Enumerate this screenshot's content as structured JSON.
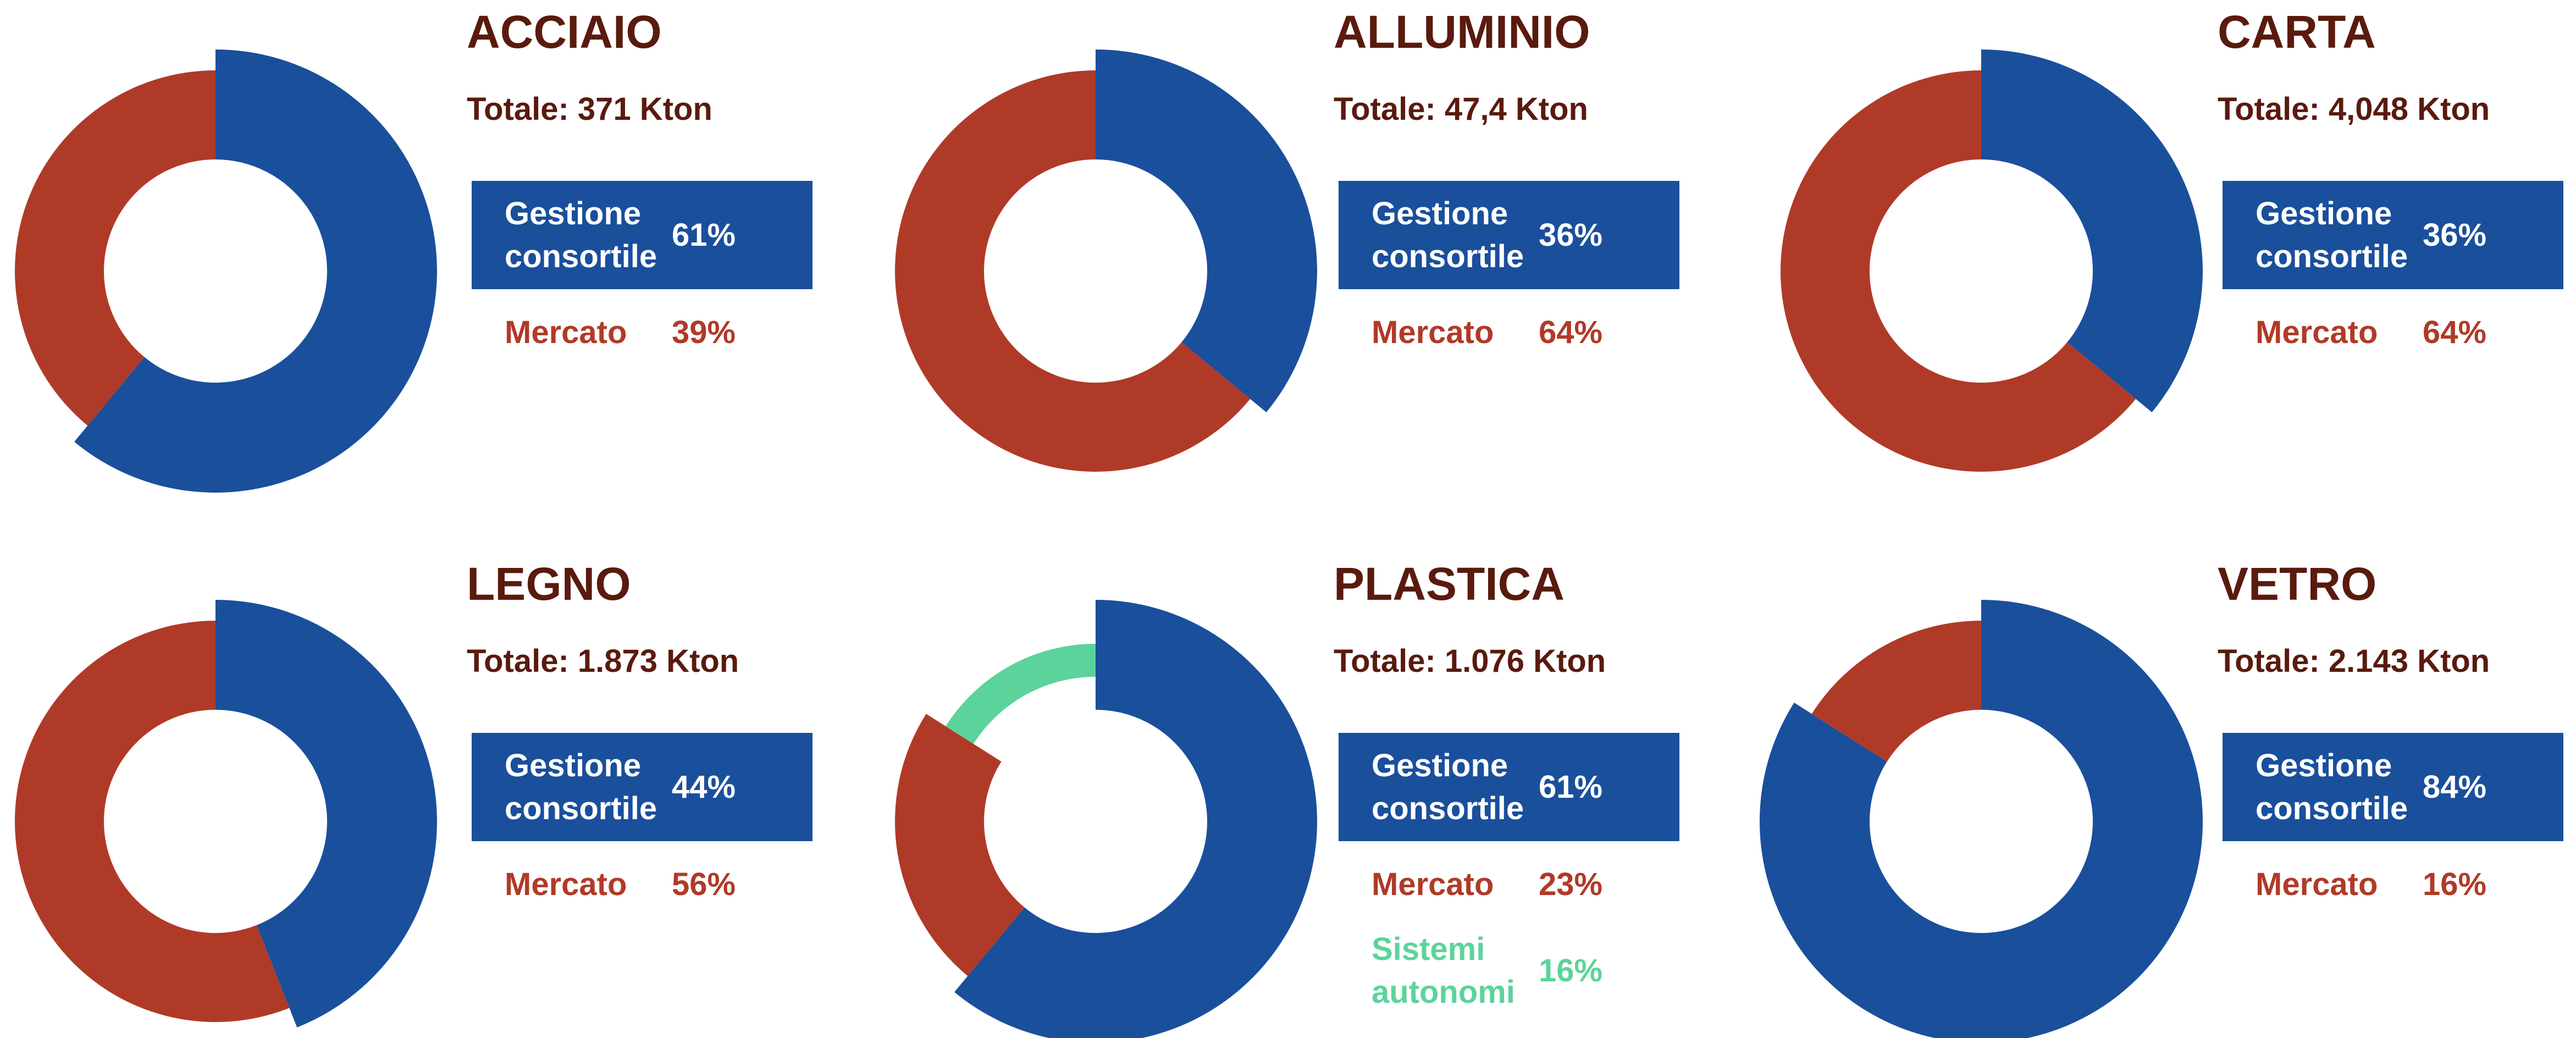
{
  "chart_data": [
    {
      "type": "pie",
      "title": "ACCIAIO",
      "subtitle": "Totale: 371 Kton",
      "categories": [
        "Gestione consortile",
        "Mercato"
      ],
      "values": [
        61,
        39
      ],
      "value_labels": [
        "61%",
        "39%"
      ],
      "colors": [
        "#1a4f9c",
        "#b03a28"
      ]
    },
    {
      "type": "pie",
      "title": "ALLUMINIO",
      "subtitle": "Totale: 47,4 Kton",
      "categories": [
        "Gestione consortile",
        "Mercato"
      ],
      "values": [
        36,
        64
      ],
      "value_labels": [
        "36%",
        "64%"
      ],
      "colors": [
        "#1a4f9c",
        "#b03a28"
      ]
    },
    {
      "type": "pie",
      "title": "CARTA",
      "subtitle": "Totale: 4,048 Kton",
      "categories": [
        "Gestione consortile",
        "Mercato"
      ],
      "values": [
        36,
        64
      ],
      "value_labels": [
        "36%",
        "64%"
      ],
      "colors": [
        "#1a4f9c",
        "#b03a28"
      ]
    },
    {
      "type": "pie",
      "title": "LEGNO",
      "subtitle": "Totale: 1.873 Kton",
      "categories": [
        "Gestione consortile",
        "Mercato"
      ],
      "values": [
        44,
        56
      ],
      "value_labels": [
        "44%",
        "56%"
      ],
      "colors": [
        "#1a4f9c",
        "#b03a28"
      ]
    },
    {
      "type": "pie",
      "title": "PLASTICA",
      "subtitle": "Totale: 1.076 Kton",
      "categories": [
        "Gestione consortile",
        "Mercato",
        "Sistemi autonomi"
      ],
      "values": [
        61,
        23,
        16
      ],
      "value_labels": [
        "61%",
        "23%",
        "16%"
      ],
      "colors": [
        "#1a4f9c",
        "#b03a28",
        "#5cd39b"
      ]
    },
    {
      "type": "pie",
      "title": "VETRO",
      "subtitle": "Totale: 2.143 Kton",
      "categories": [
        "Gestione consortile",
        "Mercato"
      ],
      "values": [
        84,
        16
      ],
      "value_labels": [
        "84%",
        "16%"
      ],
      "colors": [
        "#1a4f9c",
        "#b03a28"
      ]
    }
  ]
}
